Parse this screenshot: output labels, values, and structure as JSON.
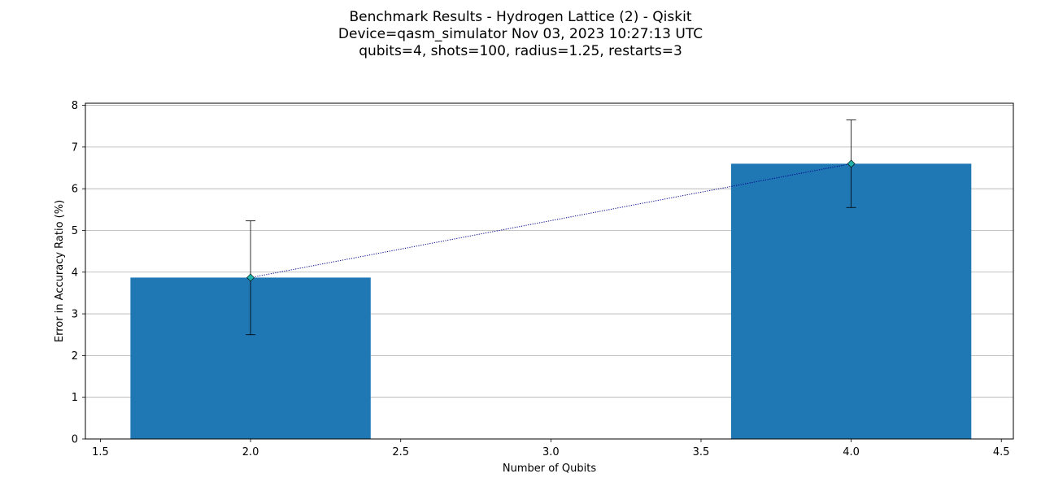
{
  "title_lines": [
    "Benchmark Results - Hydrogen Lattice (2) - Qiskit",
    "Device=qasm_simulator  Nov 03, 2023 10:27:13 UTC",
    "qubits=4, shots=100, radius=1.25, restarts=3"
  ],
  "chart_data": {
    "type": "bar",
    "xlabel": "Number of Qubits",
    "ylabel": "Error in Accuracy Ratio (%)",
    "xlim": [
      1.45,
      4.54
    ],
    "ylim": [
      0,
      8.05
    ],
    "x_ticks": [
      1.5,
      2.0,
      2.5,
      3.0,
      3.5,
      4.0,
      4.5
    ],
    "x_tick_labels": [
      "1.5",
      "2.0",
      "2.5",
      "3.0",
      "3.5",
      "4.0",
      "4.5"
    ],
    "y_ticks": [
      0,
      1,
      2,
      3,
      4,
      5,
      6,
      7,
      8
    ],
    "y_tick_labels": [
      "0",
      "1",
      "2",
      "3",
      "4",
      "5",
      "6",
      "7",
      "8"
    ],
    "grid": "horizontal",
    "legend": "none",
    "bar_width": 0.8,
    "bar_color": "#1f77b4",
    "line_color": "#00008b",
    "marker_color": "#20b2aa",
    "errorbar_color": "#000000",
    "points": [
      {
        "x": 2.0,
        "y": 3.87,
        "err_low": 2.5,
        "err_high": 5.23
      },
      {
        "x": 4.0,
        "y": 6.6,
        "err_low": 5.55,
        "err_high": 7.65
      }
    ]
  }
}
